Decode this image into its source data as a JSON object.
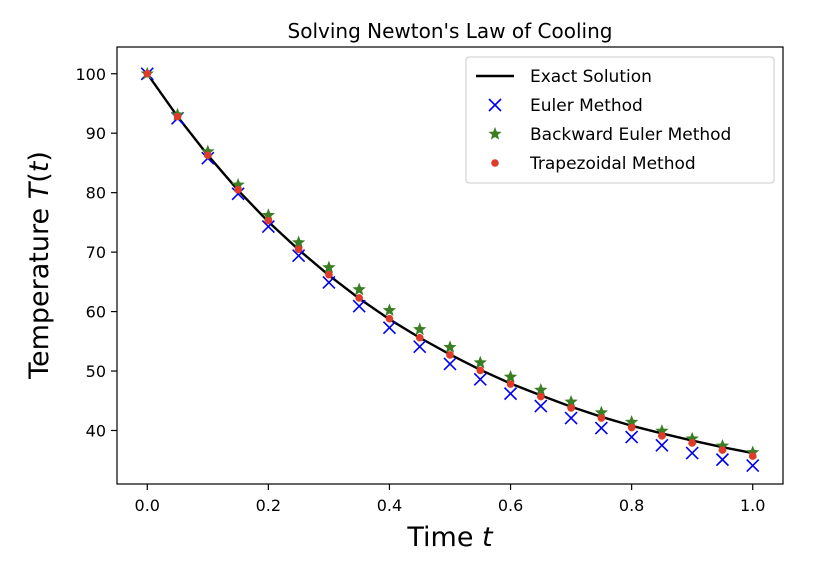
{
  "chart_data": {
    "type": "line",
    "title": "Solving Newton's Law of Cooling",
    "xlabel": {
      "text": "Time ",
      "var": "t"
    },
    "ylabel": {
      "text": "Temperature ",
      "var": "T",
      "paren_open": "(",
      "paren_var": "t",
      "paren_close": ")"
    },
    "xlim": [
      -0.05,
      1.05
    ],
    "ylim": [
      31,
      104.5
    ],
    "xticks": [
      0.0,
      0.2,
      0.4,
      0.6,
      0.8,
      1.0
    ],
    "xtick_labels": [
      "0.0",
      "0.2",
      "0.4",
      "0.6",
      "0.8",
      "1.0"
    ],
    "yticks": [
      40,
      50,
      60,
      70,
      80,
      90,
      100
    ],
    "ytick_labels": [
      "40",
      "50",
      "60",
      "70",
      "80",
      "90",
      "100"
    ],
    "grid": false,
    "legend_position": "top-right",
    "x": [
      0.0,
      0.05,
      0.1,
      0.15,
      0.2,
      0.25,
      0.3,
      0.35,
      0.4,
      0.45,
      0.5,
      0.55,
      0.6,
      0.65,
      0.7,
      0.75,
      0.8,
      0.85,
      0.9,
      0.95,
      1.0
    ],
    "series": [
      {
        "name": "Exact Solution",
        "kind": "line",
        "color": "#000000",
        "values": [
          100.0,
          92.8,
          86.3,
          80.4,
          75.1,
          70.4,
          66.1,
          62.2,
          58.7,
          55.6,
          52.8,
          50.2,
          47.9,
          45.9,
          44.0,
          42.3,
          40.8,
          39.5,
          38.3,
          37.2,
          36.2
        ]
      },
      {
        "name": "Euler Method",
        "kind": "marker-x",
        "color": "#0000ee",
        "values": [
          100.0,
          92.5,
          85.8,
          79.8,
          74.3,
          69.4,
          64.9,
          60.9,
          57.3,
          54.1,
          51.2,
          48.6,
          46.2,
          44.1,
          42.1,
          40.4,
          38.9,
          37.5,
          36.2,
          35.1,
          34.1
        ]
      },
      {
        "name": "Backward Euler Method",
        "kind": "marker-star",
        "color": "#3a7d22",
        "values": [
          100.0,
          93.1,
          86.9,
          81.3,
          76.2,
          71.6,
          67.4,
          63.7,
          60.2,
          57.0,
          54.0,
          51.4,
          49.0,
          46.8,
          44.8,
          43.0,
          41.4,
          39.9,
          38.6,
          37.4,
          36.3
        ]
      },
      {
        "name": "Trapezoidal Method",
        "kind": "marker-dot",
        "color": "#e03a2a",
        "values": [
          100.0,
          92.8,
          86.3,
          80.5,
          75.3,
          70.5,
          66.2,
          62.3,
          58.8,
          55.6,
          52.7,
          50.1,
          47.8,
          45.7,
          43.8,
          42.1,
          40.5,
          39.1,
          37.9,
          36.7,
          35.7
        ]
      }
    ]
  }
}
